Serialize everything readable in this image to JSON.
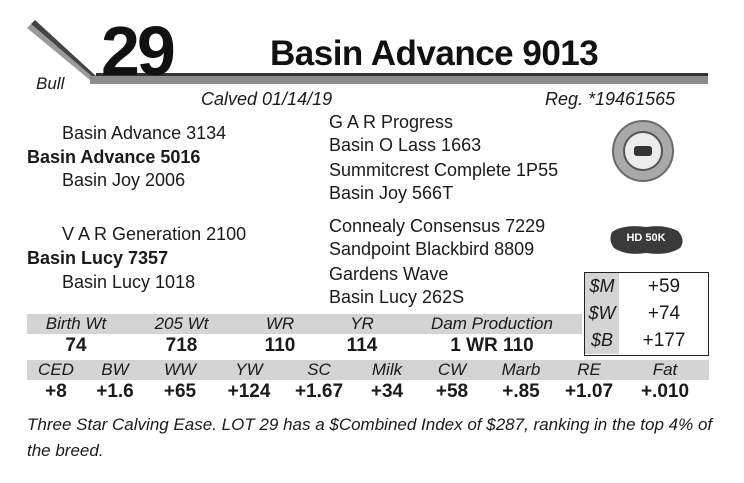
{
  "header": {
    "sex": "Bull",
    "lot_number": "29",
    "animal_name": "Basin Advance 9013",
    "calved": "Calved 01/14/19",
    "registration": "Reg. *19461565"
  },
  "pedigree": {
    "sire_sire": "Basin Advance 3134",
    "sire": "Basin Advance 5016",
    "sire_dam": "Basin Joy 2006",
    "sire_sire_sire": "G A R Progress",
    "sire_sire_dam": "Basin O Lass 1663",
    "sire_dam_sire": "Summitcrest Complete 1P55",
    "sire_dam_dam": "Basin Joy 566T",
    "dam_sire": "V A R Generation 2100",
    "dam": "Basin Lucy 7357",
    "dam_dam": "Basin Lucy 1018",
    "dam_sire_sire": "Connealy Consensus 7229",
    "dam_sire_dam": "Sandpoint Blackbird 8809",
    "dam_dam_sire": "Gardens Wave",
    "dam_dam_dam": "Basin Lucy 262S"
  },
  "badges": {
    "emblem_icon": "herd-seal-icon",
    "hd50k_label": "HD 50K"
  },
  "performance": {
    "headers": [
      "Birth Wt",
      "205 Wt",
      "WR",
      "YR",
      "Dam Production"
    ],
    "values": [
      "74",
      "718",
      "110",
      "114",
      "1 WR 110"
    ]
  },
  "epds": {
    "headers": [
      "CED",
      "BW",
      "WW",
      "YW",
      "SC",
      "Milk",
      "CW",
      "Marb",
      "RE",
      "Fat"
    ],
    "values": [
      "+8",
      "+1.6",
      "+65",
      "+124",
      "+1.67",
      "+34",
      "+58",
      "+.85",
      "+1.07",
      "+.010"
    ]
  },
  "indexes": [
    {
      "label": "$M",
      "value": "+59"
    },
    {
      "label": "$W",
      "value": "+74"
    },
    {
      "label": "$B",
      "value": "+177"
    }
  ],
  "footnote": "Three Star Calving Ease. LOT 29 has a $Combined Index of $287, ranking in the top 4% of the breed.",
  "colors": {
    "header_rule": "#555555",
    "table_shading": "#d4d4d4",
    "text": "#1a1a1a"
  }
}
